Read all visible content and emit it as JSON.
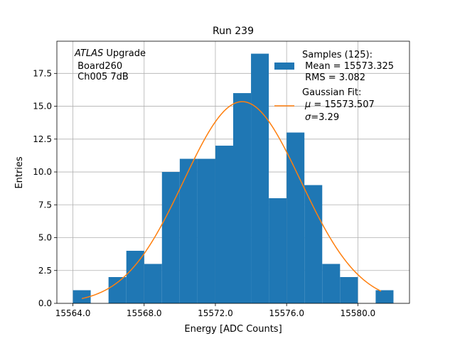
{
  "chart_data": {
    "type": "bar",
    "title": "Run 239",
    "xlabel": "Energy [ADC Counts]",
    "ylabel": "Entries",
    "xlim": [
      15563.1,
      15582.9
    ],
    "ylim": [
      0,
      19.95
    ],
    "grid": true,
    "x_ticks": [
      15564.0,
      15568.0,
      15572.0,
      15576.0,
      15580.0
    ],
    "x_tick_labels": [
      "15564.0",
      "15568.0",
      "15572.0",
      "15576.0",
      "15580.0"
    ],
    "y_ticks": [
      0.0,
      2.5,
      5.0,
      7.5,
      10.0,
      12.5,
      15.0,
      17.5
    ],
    "y_tick_labels": [
      "0.0",
      "2.5",
      "5.0",
      "7.5",
      "10.0",
      "12.5",
      "15.0",
      "17.5"
    ],
    "bin_edges": [
      15564,
      15565,
      15566,
      15567,
      15568,
      15569,
      15570,
      15571,
      15572,
      15573,
      15574,
      15575,
      15576,
      15577,
      15578,
      15579,
      15580,
      15581,
      15582
    ],
    "values": [
      1,
      0,
      2,
      4,
      3,
      10,
      11,
      11,
      12,
      16,
      19,
      8,
      13,
      9,
      3,
      2,
      0,
      1
    ],
    "hist_color": "#1f77b4",
    "fit": {
      "mu": 15573.507,
      "sigma": 3.29,
      "amplitude": 15.35,
      "x_range": [
        15564.5,
        15581.3
      ],
      "color": "#ff7f0e"
    },
    "annotation": {
      "line1_italic": "ATLAS",
      "line1_rest": " Upgrade",
      "line2": " Board260",
      "line3": " Ch005 7dB"
    },
    "legend": {
      "placement": "top-right",
      "samples_line1": "Samples (125):",
      "samples_line2": " Mean = 15573.325",
      "samples_line3": " RMS = 3.082",
      "fit_line1": "Gaussian Fit:",
      "fit_mu_symbol": "μ",
      "fit_mu_rest": " = 15573.507",
      "fit_sigma_symbol": "σ",
      "fit_sigma_rest": "=3.29"
    }
  }
}
